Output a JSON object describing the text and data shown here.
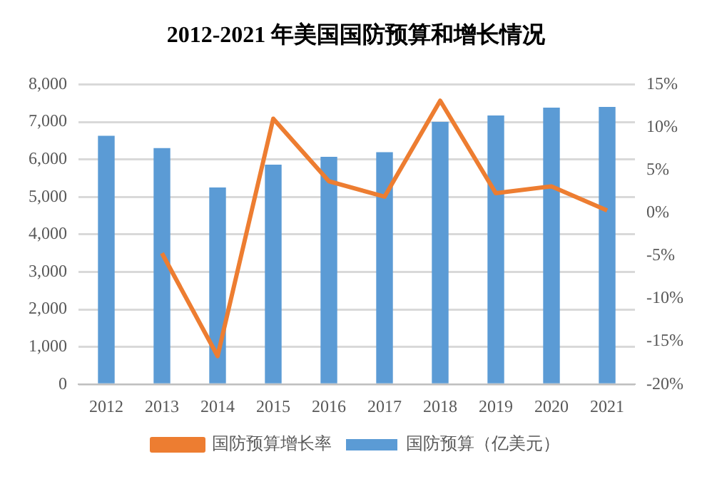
{
  "chart_data": {
    "type": "bar",
    "title": "2012-2021 年美国国防预算和增长情况",
    "categories": [
      "2012",
      "2013",
      "2014",
      "2015",
      "2016",
      "2017",
      "2018",
      "2019",
      "2020",
      "2021"
    ],
    "series": [
      {
        "name": "国防预算（亿美元）",
        "color": "#5b9bd5",
        "values": [
          6630,
          6300,
          5250,
          5860,
          6070,
          6190,
          7000,
          7170,
          7380,
          7400
        ]
      },
      {
        "name": "国防预算增长率",
        "type": "line",
        "axis": "y2",
        "color": "#ed7d31",
        "values": [
          null,
          -4.7,
          -16.7,
          11.0,
          3.7,
          1.9,
          13.1,
          2.3,
          3.1,
          0.3
        ]
      }
    ],
    "ylim": [
      0,
      8000
    ],
    "yticks": [
      {
        "value": 0,
        "label": "0"
      },
      {
        "value": 1000,
        "label": "1,000"
      },
      {
        "value": 2000,
        "label": "2,000"
      },
      {
        "value": 3000,
        "label": "3,000"
      },
      {
        "value": 4000,
        "label": "4,000"
      },
      {
        "value": 5000,
        "label": "5,000"
      },
      {
        "value": 6000,
        "label": "6,000"
      },
      {
        "value": 7000,
        "label": "7,000"
      },
      {
        "value": 8000,
        "label": "8,000"
      }
    ],
    "y2lim": [
      -20,
      15
    ],
    "y2ticks": [
      {
        "value": -20,
        "label": "-20%"
      },
      {
        "value": -15,
        "label": "-15%"
      },
      {
        "value": -10,
        "label": "-10%"
      },
      {
        "value": -5,
        "label": "-5%"
      },
      {
        "value": 0,
        "label": "0%"
      },
      {
        "value": 5,
        "label": "5%"
      },
      {
        "value": 10,
        "label": "10%"
      },
      {
        "value": 15,
        "label": "15%"
      }
    ],
    "grid": "y",
    "legend": "bottom",
    "marker": "none"
  }
}
